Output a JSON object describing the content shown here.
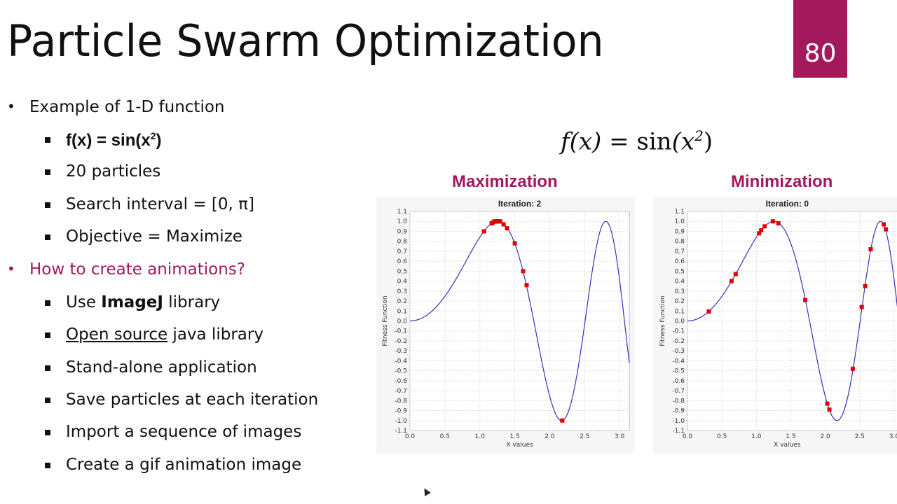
{
  "slide": {
    "title": "Particle Swarm Optimization",
    "number": "80",
    "accent_color": "#a3195b"
  },
  "bullets": [
    {
      "text": "Example of 1-D function"
    },
    {
      "text": "f(x) = sin(x",
      "sup": "2",
      "tail": ")"
    },
    {
      "text": "20 particles"
    },
    {
      "text": "Search interval = [0, π]"
    },
    {
      "text": "Objective = Maximize"
    },
    {
      "text": "How to create animations?"
    },
    {
      "pre": "Use ",
      "bold": "ImageJ",
      "post": " library"
    },
    {
      "link": "Open source",
      "post": " java library"
    },
    {
      "text": "Stand-alone application"
    },
    {
      "text": "Save particles at each iteration"
    },
    {
      "text": "Import a sequence of images"
    },
    {
      "text": "Create a gif animation image"
    }
  ],
  "formula": {
    "lhs": "f(x) = ",
    "fn": "sin",
    "arg": "(x",
    "sup": "2",
    "close": ")"
  },
  "chart_data": [
    {
      "type": "scatter",
      "heading": "Maximization",
      "title": "Iteration: 2",
      "xlabel": "X values",
      "ylabel": "Fitness Function",
      "xlim": [
        0,
        3.14
      ],
      "ylim": [
        -1.1,
        1.1
      ],
      "xticks": [
        "0.0",
        "0.5",
        "1.0",
        "1.5",
        "2.0",
        "2.5",
        "3.0"
      ],
      "yticks": [
        "1.1",
        "1.0",
        "0.9",
        "0.8",
        "0.7",
        "0.6",
        "0.5",
        "0.4",
        "0.3",
        "0.2",
        "0.1",
        "0.0",
        "-0.1",
        "-0.2",
        "-0.3",
        "-0.4",
        "-0.5",
        "-0.6",
        "-0.7",
        "-0.8",
        "-0.9",
        "-1.0",
        "-1.1"
      ],
      "grid": true,
      "curve": "sin(x^2)",
      "curve_color": "#3333bb",
      "point_color": "#e00000",
      "points": [
        [
          1.06,
          0.9
        ],
        [
          1.17,
          0.98
        ],
        [
          1.19,
          0.99
        ],
        [
          1.21,
          1.0
        ],
        [
          1.23,
          1.0
        ],
        [
          1.25,
          1.0
        ],
        [
          1.27,
          1.0
        ],
        [
          1.29,
          1.0
        ],
        [
          1.34,
          0.97
        ],
        [
          1.39,
          0.93
        ],
        [
          1.5,
          0.78
        ],
        [
          1.62,
          0.5
        ],
        [
          1.67,
          0.36
        ],
        [
          2.18,
          -1.0
        ]
      ]
    },
    {
      "type": "scatter",
      "heading": "Minimization",
      "title": "Iteration: 0",
      "xlabel": "X values",
      "ylabel": "Fitness Function",
      "xlim": [
        0,
        3.14
      ],
      "ylim": [
        -1.1,
        1.1
      ],
      "xticks": [
        "0.0",
        "0.5",
        "1.0",
        "1.5",
        "2.0",
        "2.5",
        "3.0"
      ],
      "yticks": [
        "1.1",
        "1.0",
        "0.9",
        "0.8",
        "0.7",
        "0.6",
        "0.5",
        "0.4",
        "0.3",
        "0.2",
        "0.1",
        "0.0",
        "-0.1",
        "-0.2",
        "-0.3",
        "-0.4",
        "-0.5",
        "-0.6",
        "-0.7",
        "-0.8",
        "-0.9",
        "-1.0",
        "-1.1"
      ],
      "grid": true,
      "curve": "sin(x^2)",
      "curve_color": "#3333bb",
      "point_color": "#e00000",
      "points": [
        [
          0.31,
          0.095
        ],
        [
          0.64,
          0.4
        ],
        [
          0.7,
          0.47
        ],
        [
          1.04,
          0.88
        ],
        [
          1.07,
          0.91
        ],
        [
          1.12,
          0.95
        ],
        [
          1.24,
          1.0
        ],
        [
          1.32,
          0.98
        ],
        [
          1.71,
          0.21
        ],
        [
          2.03,
          -0.83
        ],
        [
          2.06,
          -0.89
        ],
        [
          2.4,
          -0.48
        ],
        [
          2.53,
          0.14
        ],
        [
          2.58,
          0.35
        ],
        [
          2.66,
          0.72
        ],
        [
          2.85,
          0.97
        ],
        [
          2.88,
          0.92
        ]
      ]
    }
  ]
}
